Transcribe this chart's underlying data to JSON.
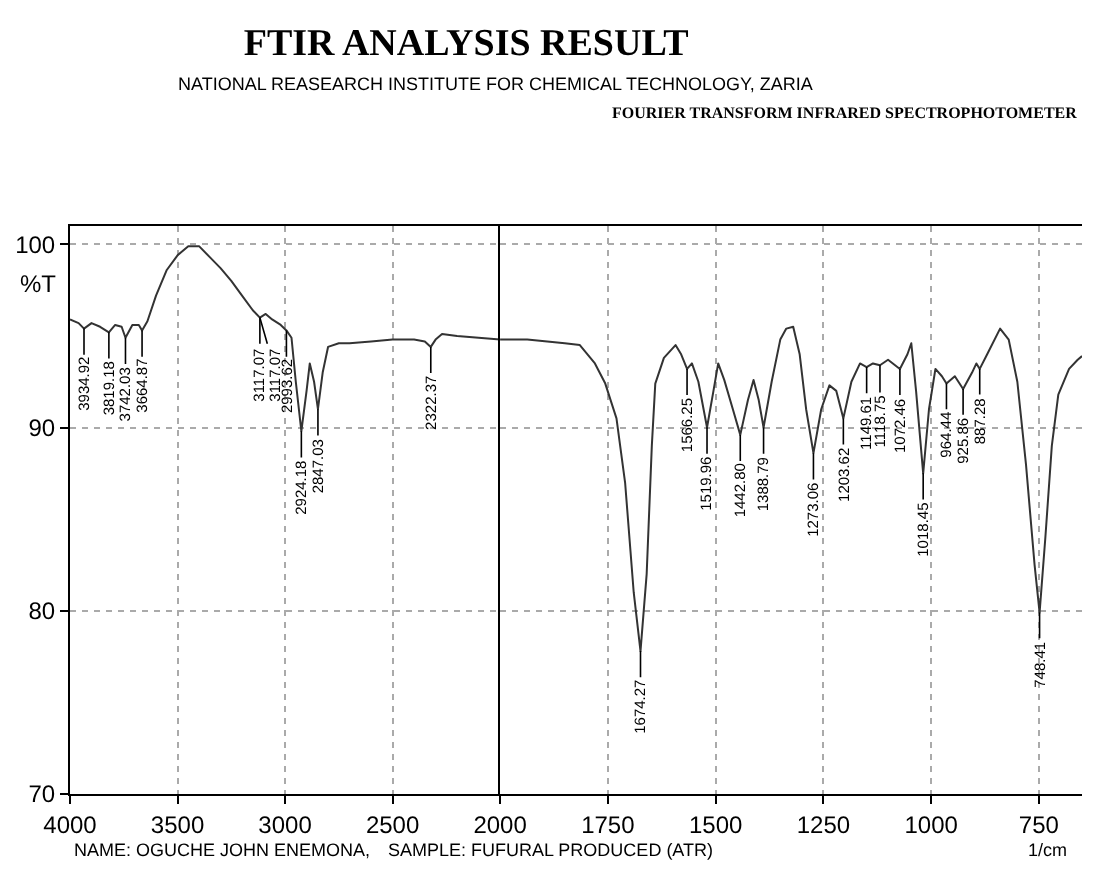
{
  "chart_data": [
    {
      "type": "line",
      "title": "FTIR ANALYSIS RESULT",
      "subtitle": "NATIONAL REASEARCH INSTITUTE FOR CHEMICAL TECHNOLOGY, ZARIA",
      "ylabel": "%T",
      "annotations": [
        "FOURIER TRANSFORM INFRARED SPECTROPHOTOMETER",
        "NAME: OGUCHE JOHN ENEMONA,",
        "SAMPLE: FUFURAL PRODUCED (ATR)",
        {
          "text": "3934.92",
          "x": 3934.92,
          "y": 95.4
        },
        {
          "text": "3819.18",
          "x": 3819.18,
          "y": 95.2
        },
        {
          "text": "3742.03",
          "x": 3742.03,
          "y": 94.9
        },
        {
          "text": "3664.87",
          "x": 3664.87,
          "y": 95.3
        },
        {
          "text": "3117.07",
          "x": 3117.07,
          "y": 96.0
        },
        {
          "text": "3117.07",
          "x": 3117.07,
          "y": 96.0
        },
        {
          "text": "2993.62",
          "x": 2993.62,
          "y": 95.3
        },
        {
          "text": "2924.18",
          "x": 2924.18,
          "y": 89.8
        },
        {
          "text": "2847.03",
          "x": 2847.03,
          "y": 91.0
        },
        {
          "text": "2322.37",
          "x": 2322.37,
          "y": 94.4
        }
      ],
      "x": [
        4000,
        3960,
        3934.92,
        3900,
        3860,
        3819.18,
        3790,
        3760,
        3742.03,
        3710,
        3680,
        3664.87,
        3640,
        3600,
        3550,
        3500,
        3450,
        3400,
        3350,
        3300,
        3250,
        3200,
        3150,
        3117.07,
        3090,
        3060,
        3020,
        2993.62,
        2970,
        2950,
        2924.18,
        2900,
        2885,
        2865,
        2847.03,
        2825,
        2800,
        2750,
        2700,
        2600,
        2500,
        2400,
        2350,
        2322.37,
        2300,
        2270,
        2200,
        2100,
        2000
      ],
      "series": [
        {
          "color": "#333333",
          "values": [
            95.9,
            95.7,
            95.4,
            95.7,
            95.5,
            95.2,
            95.6,
            95.5,
            94.9,
            95.6,
            95.6,
            95.3,
            95.8,
            97.2,
            98.6,
            99.4,
            99.9,
            99.9,
            99.3,
            98.7,
            98.0,
            97.2,
            96.4,
            96.0,
            96.2,
            95.9,
            95.6,
            95.3,
            94.9,
            92.5,
            89.8,
            92.0,
            93.5,
            92.5,
            91.0,
            93.0,
            94.4,
            94.6,
            94.6,
            94.7,
            94.8,
            94.8,
            94.7,
            94.4,
            94.8,
            95.1,
            95.0,
            94.9,
            94.8
          ]
        }
      ],
      "xlim": [
        4000,
        2000
      ],
      "xticks": [
        4000,
        3500,
        3000,
        2500,
        2000
      ],
      "ylim": [
        70,
        101
      ],
      "yticks": [
        70,
        80,
        90,
        100
      ],
      "grid": true
    },
    {
      "type": "line",
      "xlabel": "1/cm",
      "tick_labels": "x",
      "annotations": [
        {
          "text": "1674.27",
          "x": 1674.27,
          "y": 77.8
        },
        {
          "text": "1566.25",
          "x": 1566.25,
          "y": 93.2
        },
        {
          "text": "1519.96",
          "x": 1519.96,
          "y": 90.0
        },
        {
          "text": "1442.80",
          "x": 1442.8,
          "y": 89.6
        },
        {
          "text": "1388.79",
          "x": 1388.79,
          "y": 90.0
        },
        {
          "text": "1273.06",
          "x": 1273.06,
          "y": 88.6
        },
        {
          "text": "1203.62",
          "x": 1203.62,
          "y": 90.5
        },
        {
          "text": "1149.61",
          "x": 1149.61,
          "y": 93.3
        },
        {
          "text": "1118.75",
          "x": 1118.75,
          "y": 93.4
        },
        {
          "text": "1072.46",
          "x": 1072.46,
          "y": 93.2
        },
        {
          "text": "1018.45",
          "x": 1018.45,
          "y": 87.5
        },
        {
          "text": "964.44",
          "x": 964.44,
          "y": 92.4
        },
        {
          "text": "925.86",
          "x": 925.86,
          "y": 92.1
        },
        {
          "text": "887.28",
          "x": 887.28,
          "y": 93.2
        },
        {
          "text": "748.41",
          "x": 748.41,
          "y": 79.9
        }
      ],
      "x": [
        2000,
        1937,
        1850,
        1815,
        1780,
        1756,
        1730,
        1710,
        1690,
        1674.27,
        1660,
        1648,
        1640,
        1620,
        1593,
        1580,
        1566.25,
        1555,
        1540,
        1519.96,
        1505,
        1494,
        1480,
        1460,
        1442.8,
        1425,
        1412,
        1400,
        1388.79,
        1370,
        1350,
        1336,
        1320,
        1305,
        1290,
        1273.06,
        1255,
        1236,
        1220,
        1203.62,
        1185,
        1165,
        1149.61,
        1135,
        1118.75,
        1100,
        1072.46,
        1055,
        1046,
        1035,
        1018.45,
        1005,
        990,
        975,
        964.44,
        945,
        925.86,
        905,
        895,
        887.28,
        870,
        840,
        820,
        800,
        780,
        760,
        748.41,
        735,
        720,
        705,
        680,
        660,
        650
      ],
      "series": [
        {
          "color": "#333333",
          "values": [
            94.8,
            94.8,
            94.6,
            94.5,
            93.5,
            92.4,
            90.5,
            87,
            81,
            77.8,
            82,
            89,
            92.4,
            93.8,
            94.5,
            94.0,
            93.2,
            93.5,
            92.5,
            90.0,
            92.0,
            93.5,
            92.6,
            91.0,
            89.6,
            91.5,
            92.6,
            91.5,
            90.0,
            92.5,
            94.8,
            95.4,
            95.5,
            94.0,
            91,
            88.6,
            91.0,
            92.3,
            92.0,
            90.5,
            92.5,
            93.5,
            93.3,
            93.5,
            93.4,
            93.7,
            93.2,
            94.0,
            94.6,
            92,
            87.5,
            91,
            93.2,
            92.8,
            92.4,
            92.8,
            92.1,
            93.0,
            93.5,
            93.2,
            94.0,
            95.4,
            94.8,
            92.5,
            88,
            82.5,
            79.9,
            84,
            89,
            91.8,
            93.2,
            93.7,
            93.9
          ]
        }
      ],
      "xlim": [
        2000,
        650
      ],
      "xticks": [
        1750,
        1500,
        1250,
        1000,
        750
      ],
      "ylim": [
        70,
        101
      ],
      "yticks": [
        70,
        80,
        90,
        100
      ],
      "grid": true
    }
  ]
}
